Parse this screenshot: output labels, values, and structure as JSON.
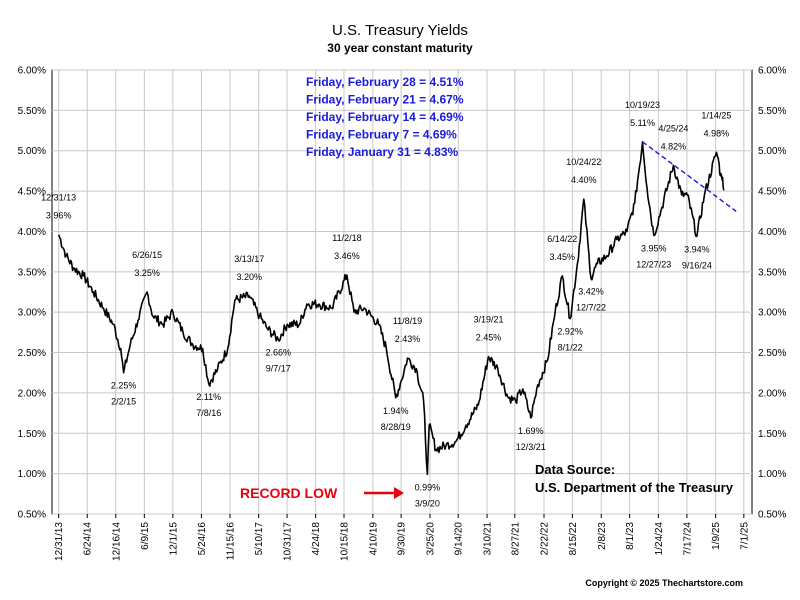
{
  "chart_data": {
    "type": "line",
    "title": "U.S. Treasury Yields",
    "subtitle": "30 year constant maturity",
    "ylim": [
      0.5,
      6.0
    ],
    "y_ticks": [
      "0.50%",
      "1.00%",
      "1.50%",
      "2.00%",
      "2.50%",
      "3.00%",
      "3.50%",
      "4.00%",
      "4.50%",
      "5.00%",
      "5.50%",
      "6.00%"
    ],
    "x_range": [
      "2013-11-20",
      "2025-08-20"
    ],
    "x_ticks": [
      {
        "date": "2013-12-31",
        "label": "12/31/13"
      },
      {
        "date": "2014-06-24",
        "label": "6/24/14"
      },
      {
        "date": "2014-12-16",
        "label": "12/16/14"
      },
      {
        "date": "2015-06-09",
        "label": "6/9/15"
      },
      {
        "date": "2015-12-01",
        "label": "12/1/15"
      },
      {
        "date": "2016-05-24",
        "label": "5/24/16"
      },
      {
        "date": "2016-11-15",
        "label": "11/15/16"
      },
      {
        "date": "2017-05-10",
        "label": "5/10/17"
      },
      {
        "date": "2017-10-31",
        "label": "10/31/17"
      },
      {
        "date": "2018-04-24",
        "label": "4/24/18"
      },
      {
        "date": "2018-10-15",
        "label": "10/15/18"
      },
      {
        "date": "2019-04-10",
        "label": "4/10/19"
      },
      {
        "date": "2019-09-30",
        "label": "9/30/19"
      },
      {
        "date": "2020-03-25",
        "label": "3/25/20"
      },
      {
        "date": "2020-09-14",
        "label": "9/14/20"
      },
      {
        "date": "2021-03-10",
        "label": "3/10/21"
      },
      {
        "date": "2021-08-27",
        "label": "8/27/21"
      },
      {
        "date": "2022-02-22",
        "label": "2/22/22"
      },
      {
        "date": "2022-08-15",
        "label": "8/15/22"
      },
      {
        "date": "2023-02-08",
        "label": "2/8/23"
      },
      {
        "date": "2023-08-01",
        "label": "8/1/23"
      },
      {
        "date": "2024-01-24",
        "label": "1/24/24"
      },
      {
        "date": "2024-07-17",
        "label": "7/17/24"
      },
      {
        "date": "2025-01-09",
        "label": "1/9/25"
      },
      {
        "date": "2025-07-01",
        "label": "7/1/25"
      }
    ],
    "grid": true,
    "series": [
      {
        "color": "#000000",
        "points": [
          [
            "2013-12-31",
            3.96
          ],
          [
            "2014-02-15",
            3.7
          ],
          [
            "2014-04-01",
            3.55
          ],
          [
            "2014-06-01",
            3.45
          ],
          [
            "2014-08-01",
            3.25
          ],
          [
            "2014-10-01",
            3.05
          ],
          [
            "2014-12-01",
            2.85
          ],
          [
            "2015-01-15",
            2.55
          ],
          [
            "2015-02-02",
            2.25
          ],
          [
            "2015-03-15",
            2.6
          ],
          [
            "2015-05-01",
            2.9
          ],
          [
            "2015-06-26",
            3.25
          ],
          [
            "2015-08-01",
            2.95
          ],
          [
            "2015-10-01",
            2.85
          ],
          [
            "2015-12-01",
            3.0
          ],
          [
            "2016-02-01",
            2.75
          ],
          [
            "2016-04-01",
            2.6
          ],
          [
            "2016-06-01",
            2.55
          ],
          [
            "2016-07-08",
            2.11
          ],
          [
            "2016-09-01",
            2.3
          ],
          [
            "2016-11-01",
            2.55
          ],
          [
            "2016-12-15",
            3.15
          ],
          [
            "2017-03-13",
            3.2
          ],
          [
            "2017-05-15",
            2.95
          ],
          [
            "2017-07-01",
            2.8
          ],
          [
            "2017-09-07",
            2.66
          ],
          [
            "2017-11-01",
            2.85
          ],
          [
            "2018-01-15",
            2.85
          ],
          [
            "2018-03-01",
            3.1
          ],
          [
            "2018-05-15",
            3.1
          ],
          [
            "2018-08-01",
            3.05
          ],
          [
            "2018-11-02",
            3.46
          ],
          [
            "2018-12-15",
            3.0
          ],
          [
            "2019-02-15",
            3.05
          ],
          [
            "2019-05-15",
            2.85
          ],
          [
            "2019-07-01",
            2.55
          ],
          [
            "2019-08-28",
            1.94
          ],
          [
            "2019-10-01",
            2.15
          ],
          [
            "2019-11-08",
            2.43
          ],
          [
            "2020-01-01",
            2.3
          ],
          [
            "2020-02-15",
            1.9
          ],
          [
            "2020-03-09",
            0.99
          ],
          [
            "2020-03-20",
            1.6
          ],
          [
            "2020-05-01",
            1.3
          ],
          [
            "2020-07-01",
            1.35
          ],
          [
            "2020-09-01",
            1.4
          ],
          [
            "2020-11-01",
            1.6
          ],
          [
            "2021-01-15",
            1.85
          ],
          [
            "2021-03-19",
            2.45
          ],
          [
            "2021-05-15",
            2.3
          ],
          [
            "2021-07-15",
            1.95
          ],
          [
            "2021-09-01",
            1.9
          ],
          [
            "2021-10-15",
            2.05
          ],
          [
            "2021-12-03",
            1.69
          ],
          [
            "2022-01-15",
            2.1
          ],
          [
            "2022-03-15",
            2.4
          ],
          [
            "2022-05-01",
            3.0
          ],
          [
            "2022-06-14",
            3.45
          ],
          [
            "2022-08-01",
            2.92
          ],
          [
            "2022-09-15",
            3.6
          ],
          [
            "2022-10-24",
            4.4
          ],
          [
            "2022-12-07",
            3.42
          ],
          [
            "2023-01-15",
            3.6
          ],
          [
            "2023-03-15",
            3.7
          ],
          [
            "2023-05-15",
            3.9
          ],
          [
            "2023-07-15",
            4.0
          ],
          [
            "2023-09-01",
            4.35
          ],
          [
            "2023-10-19",
            5.11
          ],
          [
            "2023-11-15",
            4.55
          ],
          [
            "2023-12-27",
            3.95
          ],
          [
            "2024-02-15",
            4.3
          ],
          [
            "2024-04-25",
            4.82
          ],
          [
            "2024-06-15",
            4.45
          ],
          [
            "2024-07-20",
            4.45
          ],
          [
            "2024-09-16",
            3.94
          ],
          [
            "2024-11-01",
            4.45
          ],
          [
            "2025-01-14",
            4.98
          ],
          [
            "2025-01-31",
            4.83
          ],
          [
            "2025-02-07",
            4.69
          ],
          [
            "2025-02-14",
            4.69
          ],
          [
            "2025-02-21",
            4.67
          ],
          [
            "2025-02-28",
            4.51
          ]
        ]
      }
    ],
    "annotations": [
      {
        "date": "2013-12-31",
        "value": 3.96,
        "date_label": "12/31/13",
        "value_label": "3.96%",
        "pos": "above"
      },
      {
        "date": "2015-02-02",
        "value": 2.25,
        "date_label": "2/2/15",
        "value_label": "2.25%",
        "pos": "below"
      },
      {
        "date": "2015-06-26",
        "value": 3.25,
        "date_label": "6/26/15",
        "value_label": "3.25%",
        "pos": "above"
      },
      {
        "date": "2016-07-08",
        "value": 2.11,
        "date_label": "7/8/16",
        "value_label": "2.11%",
        "pos": "below"
      },
      {
        "date": "2017-03-13",
        "value": 3.2,
        "date_label": "3/13/17",
        "value_label": "3.20%",
        "pos": "above"
      },
      {
        "date": "2017-09-07",
        "value": 2.66,
        "date_label": "9/7/17",
        "value_label": "2.66%",
        "pos": "below"
      },
      {
        "date": "2018-11-02",
        "value": 3.46,
        "date_label": "11/2/18",
        "value_label": "3.46%",
        "pos": "above"
      },
      {
        "date": "2019-08-28",
        "value": 1.94,
        "date_label": "8/28/19",
        "value_label": "1.94%",
        "pos": "below"
      },
      {
        "date": "2019-11-08",
        "value": 2.43,
        "date_label": "11/8/19",
        "value_label": "2.43%",
        "pos": "above"
      },
      {
        "date": "2020-03-09",
        "value": 0.99,
        "date_label": "3/9/20",
        "value_label": "0.99%",
        "pos": "below"
      },
      {
        "date": "2021-03-19",
        "value": 2.45,
        "date_label": "3/19/21",
        "value_label": "2.45%",
        "pos": "above"
      },
      {
        "date": "2021-12-03",
        "value": 1.69,
        "date_label": "12/3/21",
        "value_label": "1.69%",
        "pos": "below"
      },
      {
        "date": "2022-06-14",
        "value": 3.45,
        "date_label": "6/14/22",
        "value_label": "3.45%",
        "pos": "above"
      },
      {
        "date": "2022-08-01",
        "value": 2.92,
        "date_label": "8/1/22",
        "value_label": "2.92%",
        "pos": "below"
      },
      {
        "date": "2022-10-24",
        "value": 4.4,
        "date_label": "10/24/22",
        "value_label": "4.40%",
        "pos": "above"
      },
      {
        "date": "2022-12-07",
        "value": 3.42,
        "date_label": "12/7/22",
        "value_label": "3.42%",
        "pos": "below"
      },
      {
        "date": "2023-10-19",
        "value": 5.11,
        "date_label": "10/19/23",
        "value_label": "5.11%",
        "pos": "above"
      },
      {
        "date": "2023-12-27",
        "value": 3.95,
        "date_label": "12/27/23",
        "value_label": "3.95%",
        "pos": "below"
      },
      {
        "date": "2024-04-25",
        "value": 4.82,
        "date_label": "4/25/24",
        "value_label": "4.82%",
        "pos": "above"
      },
      {
        "date": "2024-09-16",
        "value": 3.94,
        "date_label": "9/16/24",
        "value_label": "3.94%",
        "pos": "below"
      },
      {
        "date": "2025-01-14",
        "value": 4.98,
        "date_label": "1/14/25",
        "value_label": "4.98%",
        "pos": "above"
      }
    ],
    "trendline": {
      "color": "#1a1adc",
      "from": {
        "date": "2023-10-19",
        "value": 5.11
      },
      "to": {
        "date": "2025-05-15",
        "value": 4.25
      }
    },
    "weekly_readings": [
      "Friday, February 28 = 4.51%",
      "Friday, February 21 = 4.67%",
      "Friday, February 14 = 4.69%",
      "Friday, February 7 = 4.69%",
      "Friday, January 31 = 4.83%"
    ],
    "record_low_label": "RECORD LOW",
    "source_lines": [
      "Data Source:",
      "U.S. Department of the Treasury"
    ],
    "copyright": "Copyright © 2025 Thechartstore.com",
    "colors": {
      "line": "#000000",
      "grid": "#c8c8c8",
      "record": "#e8000b",
      "weekly": "#1a1adc"
    }
  }
}
